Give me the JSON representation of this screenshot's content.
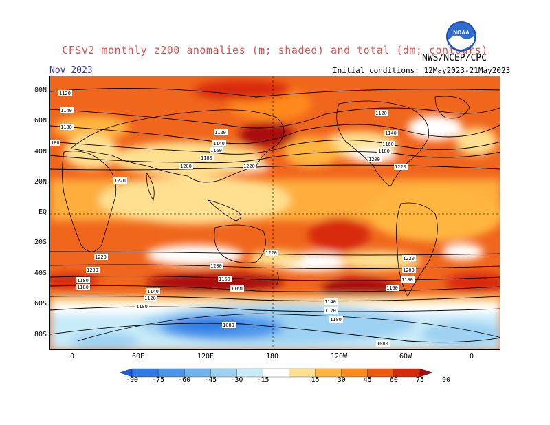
{
  "title": "CFSv2 monthly z200 anomalies (m; shaded) and total (dm; contours)",
  "agency": "NWS/NCEP/CPC",
  "period": "Nov 2023",
  "initial_conditions": "Initial conditions: 12May2023-21May2023",
  "logo_text": "NOAA",
  "lat_labels": [
    "80N",
    "60N",
    "40N",
    "20N",
    "EQ",
    "20S",
    "40S",
    "60S",
    "80S"
  ],
  "lon_labels": [
    "0",
    "60E",
    "120E",
    "180",
    "120W",
    "60W",
    "0"
  ],
  "colorbar": {
    "labels": [
      "-90",
      "-75",
      "-60",
      "-45",
      "-30",
      "-15",
      "15",
      "30",
      "45",
      "60",
      "75",
      "90"
    ],
    "colors": [
      "#1a5ce0",
      "#2f7ae6",
      "#4c96ea",
      "#72b4ee",
      "#9ed2f2",
      "#c8ebf8",
      "#ffffff",
      "#ffe090",
      "#ffb640",
      "#ff8a1a",
      "#f25a10",
      "#d82a0a",
      "#a80c08"
    ]
  },
  "contour_labels": [
    "1120",
    "1140",
    "1160",
    "1180",
    "1120",
    "1140",
    "1160",
    "1180",
    "1200",
    "1220",
    "1120",
    "1140",
    "1160",
    "1180",
    "1200",
    "1220",
    "1220",
    "1200",
    "1180",
    "1160",
    "1220",
    "1200",
    "1160",
    "1220",
    "1200",
    "1180",
    "1160",
    "1140",
    "1120",
    "1100",
    "1080",
    "1140",
    "1120",
    "1100",
    "1080",
    "1180",
    "1160",
    "1180",
    "1140",
    "1120"
  ]
}
